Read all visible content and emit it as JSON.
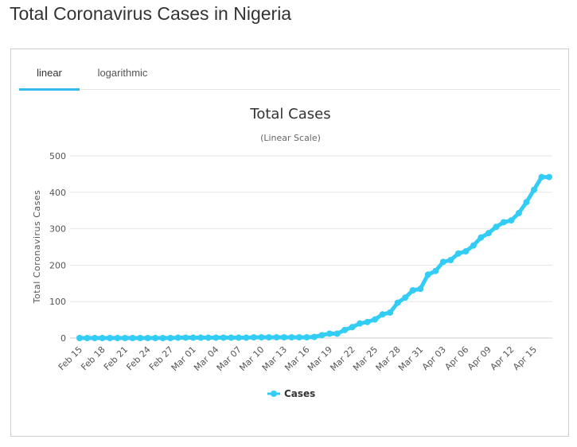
{
  "page": {
    "title": "Total Coronavirus Cases in Nigeria"
  },
  "tabs": [
    {
      "label": "linear",
      "active": true
    },
    {
      "label": "logarithmic",
      "active": false
    }
  ],
  "colors": {
    "series": "#33ccf5",
    "grid": "#e6e6e6",
    "tab_accent": "#33bbee"
  },
  "chart_data": {
    "type": "line",
    "title": "Total Cases",
    "subtitle": "(Linear Scale)",
    "xlabel": "",
    "ylabel": "Total Coronavirus Cases",
    "ylim": [
      0,
      500
    ],
    "yticks": [
      0,
      100,
      200,
      300,
      400,
      500
    ],
    "grid": true,
    "legend": "bottom-center",
    "x": [
      "Feb 15",
      "Feb 16",
      "Feb 17",
      "Feb 18",
      "Feb 19",
      "Feb 20",
      "Feb 21",
      "Feb 22",
      "Feb 23",
      "Feb 24",
      "Feb 25",
      "Feb 26",
      "Feb 27",
      "Feb 28",
      "Feb 29",
      "Mar 01",
      "Mar 02",
      "Mar 03",
      "Mar 04",
      "Mar 05",
      "Mar 06",
      "Mar 07",
      "Mar 08",
      "Mar 09",
      "Mar 10",
      "Mar 11",
      "Mar 12",
      "Mar 13",
      "Mar 14",
      "Mar 15",
      "Mar 16",
      "Mar 17",
      "Mar 18",
      "Mar 19",
      "Mar 20",
      "Mar 21",
      "Mar 22",
      "Mar 23",
      "Mar 24",
      "Mar 25",
      "Mar 26",
      "Mar 27",
      "Mar 28",
      "Mar 29",
      "Mar 30",
      "Mar 31",
      "Apr 01",
      "Apr 02",
      "Apr 03",
      "Apr 04",
      "Apr 05",
      "Apr 06",
      "Apr 07",
      "Apr 08",
      "Apr 09",
      "Apr 10",
      "Apr 11",
      "Apr 12",
      "Apr 13",
      "Apr 14",
      "Apr 15",
      "Apr 16",
      "Apr 17"
    ],
    "xtick_labels": [
      "Feb 15",
      "Feb 18",
      "Feb 21",
      "Feb 24",
      "Feb 27",
      "Mar 01",
      "Mar 04",
      "Mar 07",
      "Mar 10",
      "Mar 13",
      "Mar 16",
      "Mar 19",
      "Mar 22",
      "Mar 25",
      "Mar 28",
      "Mar 31",
      "Apr 03",
      "Apr 06",
      "Apr 09",
      "Apr 12",
      "Apr 15"
    ],
    "series": [
      {
        "name": "Cases",
        "values": [
          0,
          0,
          0,
          0,
          0,
          0,
          0,
          0,
          0,
          0,
          0,
          0,
          0,
          1,
          1,
          1,
          1,
          1,
          1,
          1,
          1,
          1,
          1,
          2,
          2,
          2,
          2,
          2,
          2,
          2,
          2,
          3,
          8,
          12,
          12,
          22,
          30,
          40,
          44,
          51,
          65,
          70,
          97,
          111,
          131,
          135,
          174,
          184,
          209,
          214,
          232,
          238,
          254,
          276,
          288,
          305,
          318,
          323,
          343,
          373,
          407,
          442,
          442
        ]
      }
    ]
  }
}
